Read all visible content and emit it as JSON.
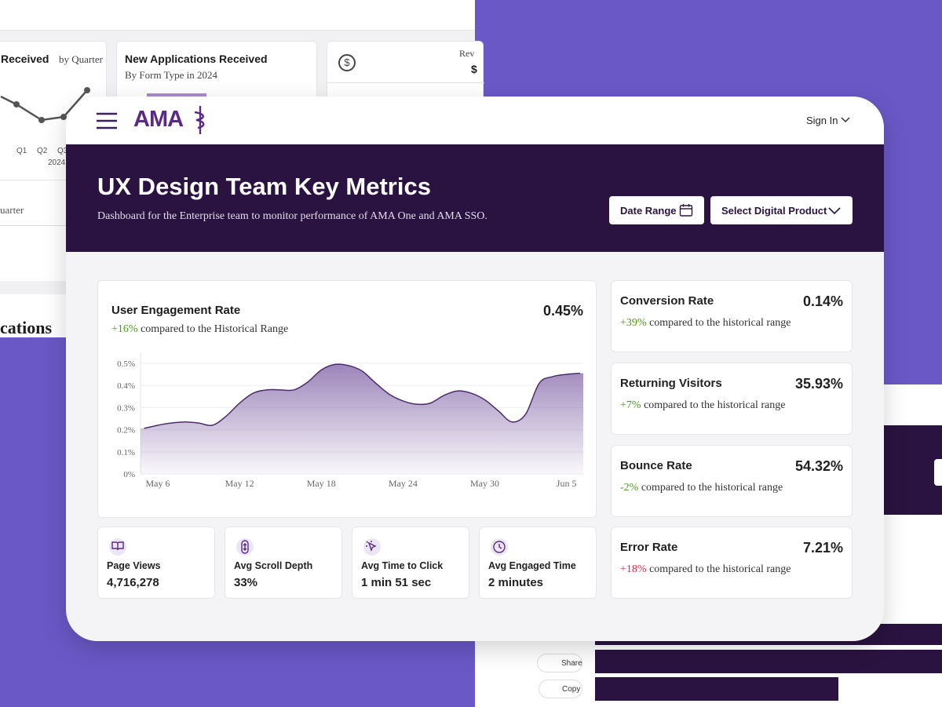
{
  "background": {
    "left_panel": {
      "card1_title": "Received",
      "card1_subtitle": "by Quarter",
      "card1_quarters": [
        "Q1",
        "Q2",
        "Q3"
      ],
      "card1_year": "2024",
      "card2_title": "New Applications Received",
      "card2_subtitle": "By Form Type in 2024",
      "card3_label": "Rev",
      "card3_value": "$",
      "section_label": "uarter",
      "section_heading": "cations"
    },
    "right_panel": {
      "share": "Share",
      "copy": "Copy"
    }
  },
  "header": {
    "logo": "AMA",
    "sign_in": "Sign In"
  },
  "banner": {
    "title": "UX Design Team Key Metrics",
    "subtitle": "Dashboard for the Enterprise team to monitor performance of AMA One and AMA SSO.",
    "date_button": "Date Range",
    "product_button": "Select Digital Product"
  },
  "chart_data": {
    "type": "area",
    "title": "User Engagement Rate",
    "headline": "0.45%",
    "change": "+16%",
    "change_color": "#4e9a1f",
    "change_note": "compared to the Historical Range",
    "categories": [
      null,
      "May 6",
      null,
      null,
      null,
      null,
      null,
      "May 12",
      null,
      null,
      null,
      null,
      null,
      "May 18",
      null,
      null,
      null,
      null,
      null,
      "May 24",
      null,
      null,
      null,
      null,
      null,
      "May 30",
      null,
      null,
      null,
      null,
      null,
      "Jun 5",
      null
    ],
    "series": [
      {
        "name": "User Engagement Rate",
        "color": "#4b2d6b",
        "values": [
          0.206,
          0.22,
          0.23,
          0.235,
          0.23,
          0.22,
          0.26,
          0.32,
          0.365,
          0.38,
          0.38,
          0.38,
          0.415,
          0.47,
          0.495,
          0.49,
          0.465,
          0.41,
          0.36,
          0.33,
          0.315,
          0.32,
          0.355,
          0.375,
          0.365,
          0.335,
          0.285,
          0.235,
          0.27,
          0.41,
          0.44,
          0.45,
          0.455
        ]
      }
    ],
    "ylim": [
      0,
      0.5
    ],
    "yticks": [
      {
        "value": 0,
        "label": "0%"
      },
      {
        "value": 0.1,
        "label": "0.1%"
      },
      {
        "value": 0.2,
        "label": "0.2%"
      },
      {
        "value": 0.3,
        "label": "0.3%"
      },
      {
        "value": 0.4,
        "label": "0.4%"
      },
      {
        "value": 0.5,
        "label": "0.5%"
      }
    ],
    "grid": true
  },
  "stats": [
    {
      "label": "Page Views",
      "value": "4,716,278"
    },
    {
      "label": "Avg Scroll Depth",
      "value": "33%"
    },
    {
      "label": "Avg Time to Click",
      "value": "1 min 51 sec"
    },
    {
      "label": "Avg Engaged Time",
      "value": "2 minutes"
    }
  ],
  "metrics": [
    {
      "name": "Conversion Rate",
      "value": "0.14%",
      "change": "+39%",
      "color": "#4e9a1f",
      "note": "compared to the historical range"
    },
    {
      "name": "Returning Visitors",
      "value": "35.93%",
      "change": "+7%",
      "color": "#4e9a1f",
      "note": "compared to the historical range"
    },
    {
      "name": "Bounce Rate",
      "value": "54.32%",
      "change": "-2%",
      "color": "#4e9a1f",
      "note": "compared to the historical range"
    },
    {
      "name": "Error Rate",
      "value": "7.21%",
      "change": "+18%",
      "color": "#d0304a",
      "note": "compared to the historical range"
    }
  ]
}
